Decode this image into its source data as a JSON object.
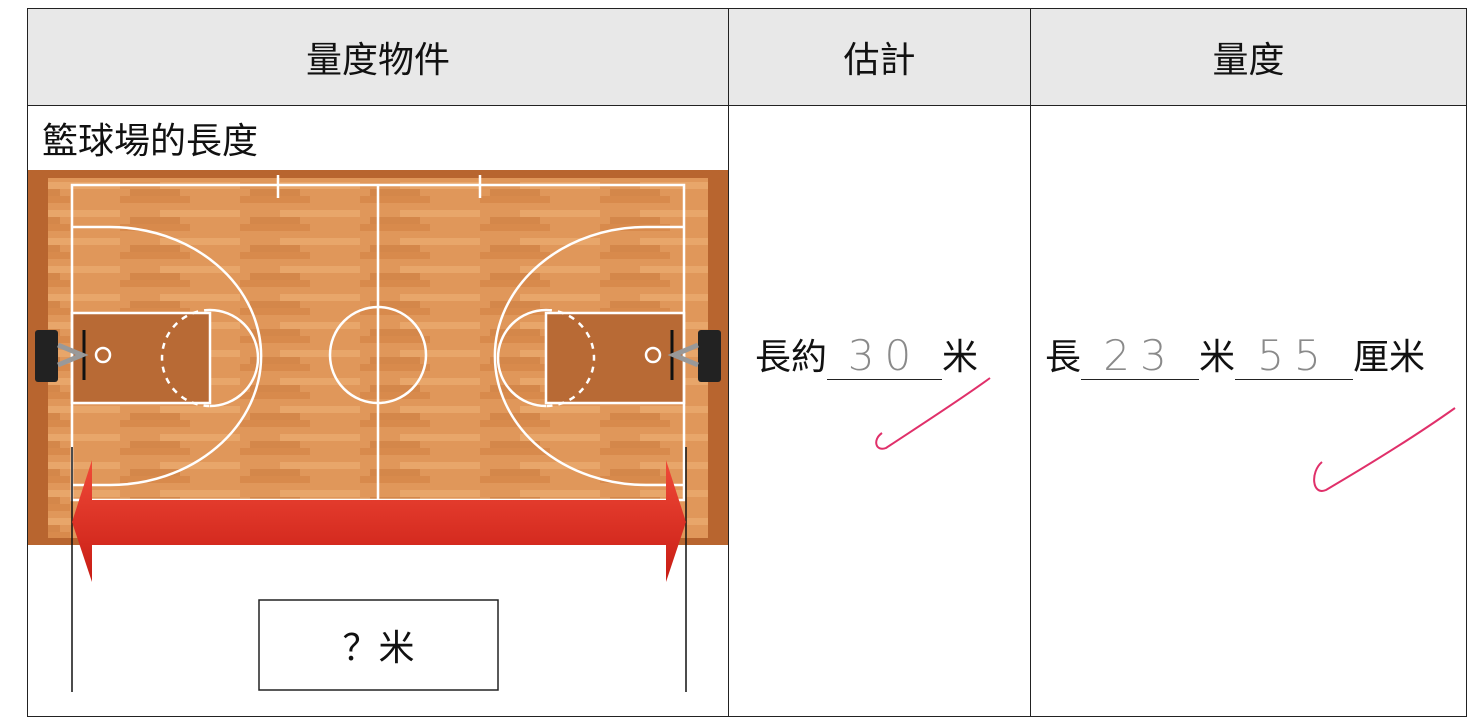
{
  "table": {
    "headers": [
      "量度物件",
      "估計",
      "量度"
    ],
    "rows": [
      {
        "item": "籃球場的長度",
        "item_box": "？米",
        "estimate": {
          "prefix": "長約",
          "answer": "30",
          "unit": "米"
        },
        "measure": {
          "prefix": "長",
          "answer_m": "23",
          "unit_m": "米",
          "answer_cm": "55",
          "unit_cm": "厘米"
        }
      }
    ]
  }
}
